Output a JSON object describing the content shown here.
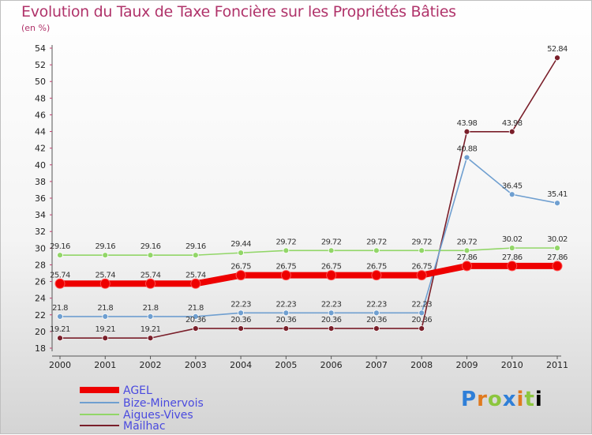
{
  "chart_data": {
    "type": "line",
    "title": "Evolution du Taux de Taxe Foncière sur les Propriétés Bâties",
    "ylabel": "(en %)",
    "xlabel": "",
    "x": [
      "2000",
      "2001",
      "2002",
      "2003",
      "2004",
      "2005",
      "2006",
      "2007",
      "2008",
      "2009",
      "2010",
      "2011"
    ],
    "ylim": [
      18,
      54
    ],
    "yticks": [
      18,
      20,
      22,
      24,
      26,
      28,
      30,
      32,
      34,
      36,
      38,
      40,
      42,
      44,
      46,
      48,
      50,
      52,
      54
    ],
    "grid": false,
    "legend": "bottom-left",
    "series": [
      {
        "name": "AGEL",
        "color": "#ee0000",
        "values": [
          25.74,
          25.74,
          25.74,
          25.74,
          26.75,
          26.75,
          26.75,
          26.75,
          26.75,
          27.86,
          27.86,
          27.86
        ],
        "labels": [
          "25.74",
          "25.74",
          "25.74",
          "25.74",
          "26.75",
          "26.75",
          "26.75",
          "26.75",
          "26.75",
          "27.86",
          "27.86",
          "27.86"
        ]
      },
      {
        "name": "Bize-Minervois",
        "color": "#6f9fd0",
        "values": [
          21.8,
          21.8,
          21.8,
          21.8,
          22.23,
          22.23,
          22.23,
          22.23,
          22.23,
          40.88,
          36.45,
          35.41
        ],
        "labels": [
          "21.8",
          "21.8",
          "21.8",
          "21.8",
          "22.23",
          "22.23",
          "22.23",
          "22.23",
          "22.23",
          "40.88",
          "36.45",
          "35.41"
        ]
      },
      {
        "name": "Aigues-Vives",
        "color": "#92d668",
        "values": [
          29.16,
          29.16,
          29.16,
          29.16,
          29.44,
          29.72,
          29.72,
          29.72,
          29.72,
          29.72,
          30.02,
          30.02
        ],
        "labels": [
          "29.16",
          "29.16",
          "29.16",
          "29.16",
          "29.44",
          "29.72",
          "29.72",
          "29.72",
          "29.72",
          "29.72",
          "30.02",
          "30.02"
        ]
      },
      {
        "name": "Mailhac",
        "color": "#7a1f2a",
        "values": [
          19.21,
          19.21,
          19.21,
          20.36,
          20.36,
          20.36,
          20.36,
          20.36,
          20.36,
          43.98,
          43.98,
          52.84
        ],
        "labels": [
          "19.21",
          "19.21",
          "19.21",
          "20.36",
          "20.36",
          "20.36",
          "20.36",
          "20.36",
          "20.36",
          "43.98",
          "43.98",
          "52.84"
        ]
      }
    ]
  },
  "logo": {
    "letters": [
      "P",
      "r",
      "o",
      "x",
      "i",
      "t",
      "i"
    ]
  }
}
